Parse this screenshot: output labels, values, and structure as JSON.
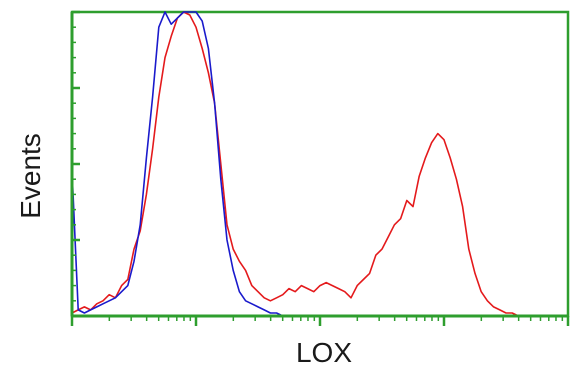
{
  "chart_data": {
    "type": "line",
    "title": "",
    "xlabel": "LOX",
    "ylabel": "Events",
    "x_scale": "log",
    "xlim": [
      0,
      4
    ],
    "ylim": [
      0,
      100
    ],
    "grid": false,
    "legend": "none",
    "colors": {
      "axis": "#2e9e2e",
      "frame": "#2e9e2e"
    },
    "series": [
      {
        "color": "#e41a1c",
        "x": [
          0.0,
          0.05,
          0.1,
          0.15,
          0.2,
          0.25,
          0.3,
          0.35,
          0.4,
          0.45,
          0.5,
          0.55,
          0.6,
          0.65,
          0.7,
          0.75,
          0.8,
          0.85,
          0.9,
          0.95,
          1.0,
          1.05,
          1.1,
          1.15,
          1.2,
          1.25,
          1.3,
          1.35,
          1.4,
          1.45,
          1.5,
          1.55,
          1.6,
          1.65,
          1.7,
          1.75,
          1.8,
          1.85,
          1.9,
          1.95,
          2.0,
          2.05,
          2.1,
          2.15,
          2.2,
          2.25,
          2.3,
          2.35,
          2.4,
          2.45,
          2.5,
          2.55,
          2.6,
          2.65,
          2.7,
          2.75,
          2.8,
          2.85,
          2.9,
          2.95,
          3.0,
          3.05,
          3.1,
          3.15,
          3.2,
          3.25,
          3.3,
          3.35,
          3.4,
          3.45,
          3.5,
          3.55,
          3.6,
          3.65,
          3.7,
          3.75,
          3.8,
          3.85,
          3.9,
          3.95,
          4.0
        ],
        "y": [
          1,
          2,
          3,
          2,
          4,
          5,
          7,
          6,
          10,
          12,
          22,
          28,
          40,
          55,
          72,
          85,
          92,
          98,
          100,
          99,
          95,
          88,
          80,
          70,
          50,
          30,
          22,
          18,
          15,
          10,
          8,
          6,
          5,
          6,
          7,
          9,
          8,
          10,
          9,
          8,
          10,
          11,
          10,
          9,
          8,
          6,
          10,
          12,
          14,
          20,
          22,
          26,
          30,
          32,
          38,
          36,
          46,
          52,
          57,
          60,
          58,
          52,
          45,
          36,
          22,
          14,
          8,
          5,
          3,
          2,
          1,
          1,
          0,
          0,
          0,
          0,
          0,
          0,
          0,
          0,
          0
        ]
      },
      {
        "color": "#1a1acc",
        "x": [
          0.0,
          0.05,
          0.1,
          0.15,
          0.2,
          0.25,
          0.3,
          0.35,
          0.4,
          0.45,
          0.5,
          0.55,
          0.6,
          0.65,
          0.7,
          0.75,
          0.8,
          0.85,
          0.9,
          0.95,
          1.0,
          1.05,
          1.1,
          1.15,
          1.2,
          1.25,
          1.3,
          1.35,
          1.4,
          1.45,
          1.5,
          1.55,
          1.6,
          1.65,
          1.7,
          1.75,
          1.8,
          1.85,
          1.9,
          1.95,
          2.0,
          2.05,
          2.1,
          2.15,
          2.2,
          2.25,
          2.3,
          2.35,
          2.4,
          2.45,
          2.5,
          2.55,
          2.6,
          2.65,
          2.7,
          2.75,
          2.8,
          2.85,
          2.9,
          2.95,
          3.0,
          3.05,
          3.1,
          3.15,
          3.2,
          3.25,
          3.3,
          3.35,
          3.4,
          3.45,
          3.5,
          3.55,
          3.6,
          3.65,
          3.7,
          3.75,
          3.8,
          3.85,
          3.9,
          3.95,
          4.0
        ],
        "y": [
          48,
          2,
          1,
          2,
          3,
          4,
          5,
          6,
          8,
          10,
          18,
          30,
          52,
          72,
          95,
          100,
          96,
          98,
          100,
          100,
          100,
          97,
          88,
          70,
          45,
          25,
          15,
          8,
          5,
          4,
          3,
          2,
          1,
          1,
          0,
          0,
          0,
          0,
          0,
          0,
          0,
          0,
          0,
          0,
          0,
          0,
          0,
          0,
          0,
          0,
          0,
          0,
          0,
          0,
          0,
          0,
          0,
          0,
          0,
          0,
          0,
          0,
          0,
          0,
          0,
          0,
          0,
          0,
          0,
          0,
          0,
          0,
          0,
          0,
          0,
          0,
          0,
          0,
          0,
          0,
          0
        ]
      }
    ]
  }
}
